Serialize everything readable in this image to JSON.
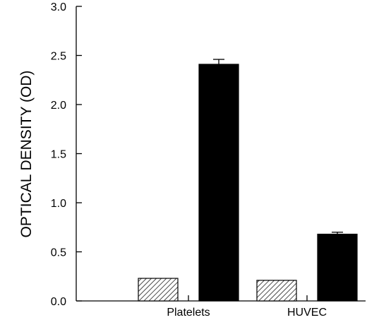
{
  "chart_data": {
    "type": "bar",
    "title": "",
    "xlabel": "",
    "ylabel": "OPTICAL DENSITY (OD)",
    "ylim": [
      0,
      3.0
    ],
    "yticks": [
      "0.0",
      "0.5",
      "1.0",
      "1.5",
      "2.0",
      "2.5",
      "3.0"
    ],
    "categories": [
      "Platelets",
      "HUVEC"
    ],
    "grid": false,
    "legend": "none",
    "series": [
      {
        "fill": "hatched",
        "color": "#000000",
        "values": [
          0.23,
          0.21
        ],
        "errors": [
          0,
          0
        ]
      },
      {
        "fill": "solid",
        "color": "#000000",
        "values": [
          2.41,
          0.68
        ],
        "errors": [
          0.05,
          0.02
        ]
      }
    ]
  }
}
